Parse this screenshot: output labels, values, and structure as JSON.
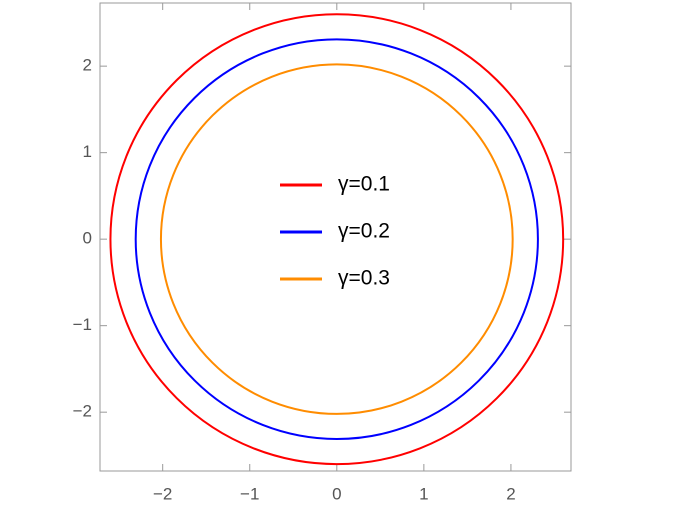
{
  "chart_data": {
    "type": "circle",
    "series": [
      {
        "name": "γ=0.1",
        "color": "#ff0000",
        "radius": 2.6
      },
      {
        "name": "γ=0.2",
        "color": "#0000ff",
        "radius": 2.31
      },
      {
        "name": "γ=0.3",
        "color": "#ff8c00",
        "radius": 2.02
      }
    ],
    "xlim": [
      -2.72,
      2.69
    ],
    "ylim": [
      -2.68,
      2.73
    ],
    "xticks": [
      {
        "value": -2,
        "label": "−2"
      },
      {
        "value": -1,
        "label": "−1"
      },
      0,
      1,
      2
    ],
    "yticks": [
      {
        "value": -2,
        "label": "−2"
      },
      {
        "value": -1,
        "label": "−1"
      },
      0,
      1,
      2
    ],
    "legend": "center"
  }
}
